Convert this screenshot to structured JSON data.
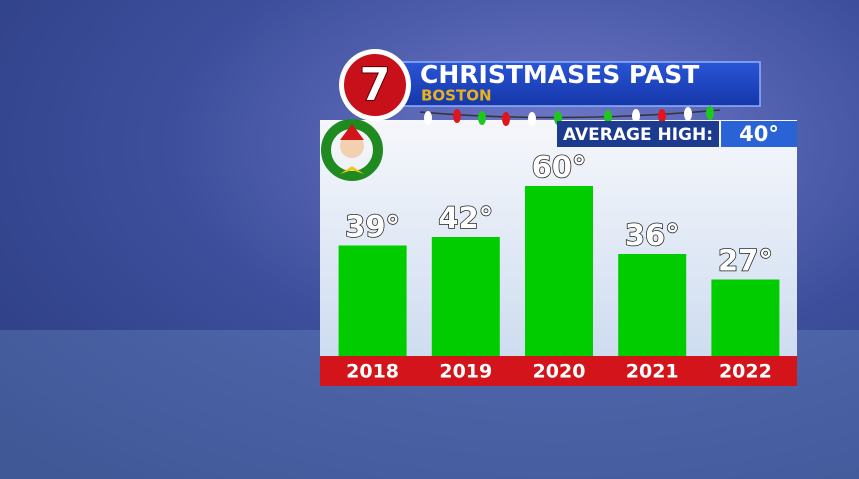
{
  "logo": "7",
  "chart_data": {
    "type": "bar",
    "title": "CHRISTMASES PAST",
    "subtitle": "BOSTON",
    "annotations": [
      "AVERAGE HIGH:",
      "40°"
    ],
    "categories": [
      "2018",
      "2019",
      "2020",
      "2021",
      "2022"
    ],
    "values": [
      39,
      42,
      60,
      36,
      27
    ],
    "value_labels": [
      "39°",
      "42°",
      "60°",
      "36°",
      "27°"
    ],
    "color": "#00cc00"
  }
}
